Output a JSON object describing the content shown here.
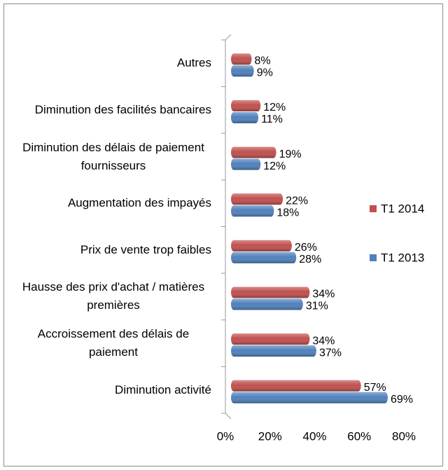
{
  "chart_data": {
    "type": "bar",
    "orientation": "horizontal",
    "categories": [
      "Autres",
      "Diminution des facilités bancaires",
      "Diminution des délais de paiement fournisseurs",
      "Augmentation des impayés",
      "Prix de vente trop faibles",
      "Hausse des prix d'achat / matières premières",
      "Accroissement des délais de paiement",
      "Diminution activité"
    ],
    "series": [
      {
        "name": "T1 2014",
        "color": "#c0504d",
        "values": [
          8,
          12,
          19,
          22,
          26,
          34,
          34,
          57
        ],
        "value_labels": [
          "8%",
          "12%",
          "19%",
          "22%",
          "26%",
          "34%",
          "34%",
          "57%"
        ]
      },
      {
        "name": "T1 2013",
        "color": "#4f81bd",
        "values": [
          9,
          11,
          12,
          18,
          28,
          31,
          37,
          69
        ],
        "value_labels": [
          "9%",
          "11%",
          "12%",
          "18%",
          "28%",
          "31%",
          "37%",
          "69%"
        ]
      }
    ],
    "xlim": [
      0,
      80
    ],
    "xticks": [
      {
        "value": 0,
        "label": "0%"
      },
      {
        "value": 20,
        "label": "20%"
      },
      {
        "value": 40,
        "label": "40%"
      },
      {
        "value": 60,
        "label": "60%"
      },
      {
        "value": 80,
        "label": "80%"
      }
    ],
    "grid": false,
    "legend": "right"
  }
}
